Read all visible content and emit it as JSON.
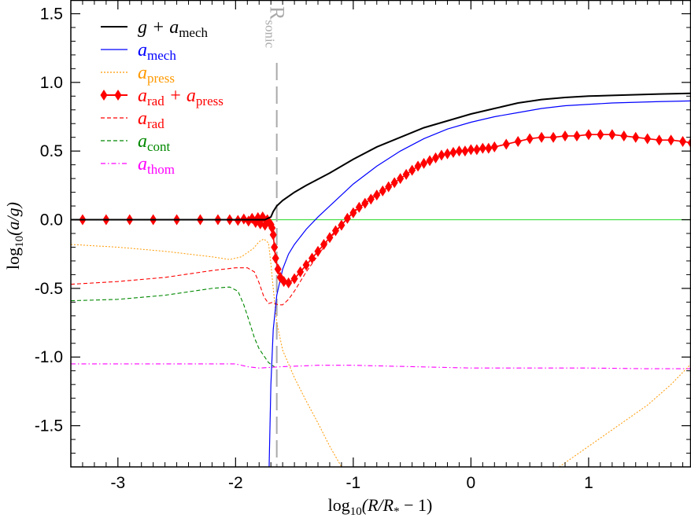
{
  "chart_data": {
    "type": "line",
    "xlabel": {
      "text": "log",
      "sub": "10",
      "tail": "(R/R",
      "star": "*",
      "end": " − 1)"
    },
    "ylabel": {
      "text": "log",
      "sub": "10",
      "tail": "(a/g)"
    },
    "xlim": [
      -3.4,
      1.87
    ],
    "ylim": [
      -1.8,
      1.6
    ],
    "xticks": [
      -3,
      -2,
      -1,
      0,
      1
    ],
    "xtick_labels": [
      "-3",
      "-2",
      "-1",
      "0",
      "1"
    ],
    "yticks": [
      -1.5,
      -1.0,
      -0.5,
      0.0,
      0.5,
      1.0,
      1.5
    ],
    "ytick_labels": [
      "-1.5",
      "-1.0",
      "-0.5",
      "0.0",
      "0.5",
      "1.0",
      "1.5"
    ],
    "annotations": [
      {
        "text": "R",
        "sub": "sonic",
        "x": -1.65,
        "color": "#aaaaaa",
        "style": "vertical-dashed-line"
      }
    ],
    "reference_line": {
      "y": 0.0,
      "color": "#44dd44"
    },
    "series": [
      {
        "name": "g + a_mech",
        "legend": {
          "main": "g + a",
          "sub": "mech"
        },
        "color": "#000000",
        "style": "solid",
        "x": [
          -3.4,
          -2.0,
          -1.75,
          -1.7,
          -1.68,
          -1.65,
          -1.6,
          -1.5,
          -1.4,
          -1.2,
          -1.0,
          -0.8,
          -0.6,
          -0.4,
          -0.2,
          0.0,
          0.2,
          0.4,
          0.6,
          0.8,
          1.0,
          1.2,
          1.4,
          1.6,
          1.87
        ],
        "y": [
          0.0,
          0.0,
          0.0,
          0.02,
          0.06,
          0.1,
          0.14,
          0.2,
          0.25,
          0.34,
          0.44,
          0.53,
          0.6,
          0.67,
          0.72,
          0.77,
          0.81,
          0.85,
          0.875,
          0.89,
          0.9,
          0.905,
          0.91,
          0.915,
          0.92
        ]
      },
      {
        "name": "a_mech",
        "legend": {
          "main": "a",
          "sub": "mech"
        },
        "color": "#0000ff",
        "style": "solid",
        "x": [
          -1.715,
          -1.7,
          -1.68,
          -1.65,
          -1.6,
          -1.55,
          -1.5,
          -1.4,
          -1.3,
          -1.2,
          -1.1,
          -1.0,
          -0.8,
          -0.6,
          -0.4,
          -0.2,
          0.0,
          0.2,
          0.4,
          0.6,
          0.8,
          1.0,
          1.2,
          1.4,
          1.6,
          1.87
        ],
        "y": [
          -1.8,
          -1.2,
          -0.8,
          -0.55,
          -0.36,
          -0.25,
          -0.18,
          -0.07,
          0.02,
          0.1,
          0.18,
          0.26,
          0.39,
          0.5,
          0.59,
          0.66,
          0.71,
          0.75,
          0.78,
          0.81,
          0.83,
          0.84,
          0.85,
          0.855,
          0.86,
          0.865
        ]
      },
      {
        "name": "a_press",
        "legend": {
          "main": "a",
          "sub": "press"
        },
        "color": "#ff9900",
        "style": "dotted",
        "x": [
          -3.4,
          -3.0,
          -2.6,
          -2.2,
          -2.05,
          -1.95,
          -1.85,
          -1.8,
          -1.76,
          -1.72,
          -1.7,
          -1.68,
          -1.65,
          -1.6,
          -1.5,
          -1.4,
          -1.3,
          -1.2,
          -1.1
        ],
        "y": [
          -0.18,
          -0.2,
          -0.23,
          -0.27,
          -0.29,
          -0.27,
          -0.21,
          -0.16,
          -0.14,
          -0.17,
          -0.32,
          -0.5,
          -0.75,
          -0.95,
          -1.15,
          -1.32,
          -1.48,
          -1.65,
          -1.8
        ],
        "x2": [
          0.75,
          0.9,
          1.1,
          1.3,
          1.5,
          1.7,
          1.87
        ],
        "y2": [
          -1.8,
          -1.71,
          -1.59,
          -1.47,
          -1.35,
          -1.2,
          -1.05
        ]
      },
      {
        "name": "a_rad + a_press",
        "legend": {
          "main": "a",
          "sub": "rad",
          "main2": " + a",
          "sub2": "press"
        },
        "color": "#ff0000",
        "style": "solid-diamond",
        "x": [
          -3.3,
          -3.1,
          -2.9,
          -2.7,
          -2.5,
          -2.3,
          -2.15,
          -2.05,
          -1.98,
          -1.93,
          -1.89,
          -1.86,
          -1.83,
          -1.81,
          -1.79,
          -1.77,
          -1.75,
          -1.73,
          -1.715,
          -1.7,
          -1.69,
          -1.68,
          -1.67,
          -1.66,
          -1.64,
          -1.62,
          -1.59,
          -1.55,
          -1.5,
          -1.45,
          -1.4,
          -1.35,
          -1.3,
          -1.25,
          -1.2,
          -1.15,
          -1.1,
          -1.05,
          -1.0,
          -0.95,
          -0.9,
          -0.85,
          -0.8,
          -0.75,
          -0.7,
          -0.65,
          -0.6,
          -0.55,
          -0.5,
          -0.45,
          -0.4,
          -0.35,
          -0.3,
          -0.25,
          -0.2,
          -0.15,
          -0.1,
          -0.05,
          0.0,
          0.05,
          0.1,
          0.15,
          0.2,
          0.3,
          0.4,
          0.5,
          0.6,
          0.7,
          0.8,
          0.9,
          1.0,
          1.1,
          1.2,
          1.3,
          1.4,
          1.5,
          1.6,
          1.7,
          1.8,
          1.87
        ],
        "y": [
          0.0,
          0.0,
          0.0,
          0.0,
          0.0,
          0.0,
          0.0,
          0.0,
          -0.005,
          0.005,
          -0.01,
          0.01,
          -0.02,
          0.015,
          -0.03,
          0.02,
          -0.04,
          0.0,
          -0.02,
          -0.035,
          -0.06,
          -0.11,
          -0.2,
          -0.28,
          -0.36,
          -0.42,
          -0.45,
          -0.46,
          -0.43,
          -0.38,
          -0.33,
          -0.28,
          -0.23,
          -0.18,
          -0.13,
          -0.08,
          -0.04,
          0.01,
          0.05,
          0.09,
          0.12,
          0.15,
          0.18,
          0.21,
          0.24,
          0.27,
          0.3,
          0.33,
          0.36,
          0.39,
          0.41,
          0.43,
          0.45,
          0.47,
          0.48,
          0.49,
          0.5,
          0.5,
          0.51,
          0.51,
          0.52,
          0.52,
          0.53,
          0.55,
          0.57,
          0.59,
          0.6,
          0.6,
          0.61,
          0.61,
          0.62,
          0.62,
          0.62,
          0.61,
          0.6,
          0.59,
          0.58,
          0.58,
          0.57,
          0.56
        ]
      },
      {
        "name": "a_rad",
        "legend": {
          "main": "a",
          "sub": "rad"
        },
        "color": "#ff0000",
        "style": "dashed",
        "x": [
          -3.4,
          -3.0,
          -2.6,
          -2.2,
          -2.0,
          -1.9,
          -1.84,
          -1.8,
          -1.76,
          -1.72,
          -1.68,
          -1.64,
          -1.6,
          -1.55,
          -1.5,
          -1.45,
          -1.4,
          -1.3,
          -1.2,
          -1.1,
          -1.0,
          -0.9,
          -0.8
        ],
        "y": [
          -0.47,
          -0.45,
          -0.42,
          -0.37,
          -0.35,
          -0.35,
          -0.38,
          -0.46,
          -0.56,
          -0.61,
          -0.6,
          -0.62,
          -0.62,
          -0.58,
          -0.52,
          -0.45,
          -0.38,
          -0.26,
          -0.14,
          -0.04,
          0.06,
          0.14,
          0.19
        ]
      },
      {
        "name": "a_cont",
        "legend": {
          "main": "a",
          "sub": "cont"
        },
        "color": "#008800",
        "style": "dashed",
        "x": [
          -3.4,
          -3.0,
          -2.6,
          -2.2,
          -2.05,
          -1.98,
          -1.93,
          -1.88,
          -1.84,
          -1.8,
          -1.76,
          -1.72,
          -1.69,
          -1.67
        ],
        "y": [
          -0.59,
          -0.58,
          -0.55,
          -0.5,
          -0.49,
          -0.52,
          -0.62,
          -0.75,
          -0.86,
          -0.94,
          -0.99,
          -1.04,
          -1.06,
          -1.07
        ]
      },
      {
        "name": "a_thom",
        "legend": {
          "main": "a",
          "sub": "thom"
        },
        "color": "#ff00ff",
        "style": "dashdot",
        "x": [
          -3.4,
          -3.0,
          -2.5,
          -2.0,
          -1.9,
          -1.8,
          -1.6,
          -1.3,
          -1.0,
          -0.5,
          0.0,
          0.5,
          1.0,
          1.5,
          1.87
        ],
        "y": [
          -1.05,
          -1.05,
          -1.05,
          -1.05,
          -1.07,
          -1.08,
          -1.07,
          -1.06,
          -1.06,
          -1.07,
          -1.08,
          -1.08,
          -1.08,
          -1.085,
          -1.085
        ]
      }
    ]
  }
}
